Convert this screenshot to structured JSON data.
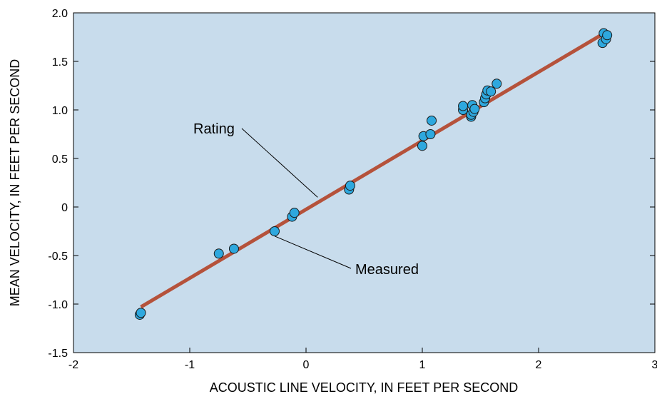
{
  "chart_data": {
    "type": "scatter",
    "xlabel": "ACOUSTIC LINE VELOCITY, IN FEET PER SECOND",
    "ylabel": "MEAN VELOCITY, IN FEET PER SECOND",
    "xlim": [
      -2,
      3
    ],
    "ylim": [
      -1.5,
      2.0
    ],
    "x_ticks": [
      -2,
      -1,
      0,
      1,
      2,
      3
    ],
    "x_tick_labels": [
      "-2",
      "-1",
      "0",
      "1",
      "2",
      "3"
    ],
    "y_ticks": [
      -1.5,
      -1.0,
      -0.5,
      0,
      0.5,
      1.0,
      1.5,
      2.0
    ],
    "y_tick_labels": [
      "-1.5",
      "-1.0",
      "-0.5",
      "0",
      "0.5",
      "1.0",
      "1.5",
      "2.0"
    ],
    "grid": false,
    "colors": {
      "plot_background": "#c8dcec",
      "rating_line": "#b5523b",
      "marker_fill": "#2ea8de",
      "marker_stroke": "#1a1a1a"
    },
    "series": [
      {
        "name": "Rating",
        "kind": "line",
        "x": [
          -1.42,
          2.55
        ],
        "y": [
          -1.03,
          1.78
        ]
      },
      {
        "name": "Measured",
        "kind": "scatter",
        "x": [
          -1.43,
          -1.42,
          -0.75,
          -0.62,
          -0.27,
          -0.12,
          -0.1,
          0.37,
          0.38,
          1.0,
          1.01,
          1.07,
          1.08,
          1.35,
          1.35,
          1.42,
          1.42,
          1.43,
          1.44,
          1.45,
          1.53,
          1.54,
          1.55,
          1.56,
          1.59,
          1.64,
          2.55,
          2.56,
          2.58,
          2.59
        ],
        "y": [
          -1.11,
          -1.09,
          -0.48,
          -0.43,
          -0.25,
          -0.1,
          -0.06,
          0.18,
          0.22,
          0.63,
          0.73,
          0.75,
          0.89,
          1.0,
          1.04,
          0.93,
          0.95,
          1.05,
          0.98,
          1.01,
          1.08,
          1.12,
          1.16,
          1.2,
          1.19,
          1.27,
          1.69,
          1.79,
          1.73,
          1.77
        ]
      }
    ],
    "annotations": [
      {
        "text": "Rating",
        "target": "Rating",
        "point": [
          0.1,
          0.1
        ]
      },
      {
        "text": "Measured",
        "target": "Measured",
        "point": [
          -0.27,
          -0.3
        ]
      }
    ]
  }
}
